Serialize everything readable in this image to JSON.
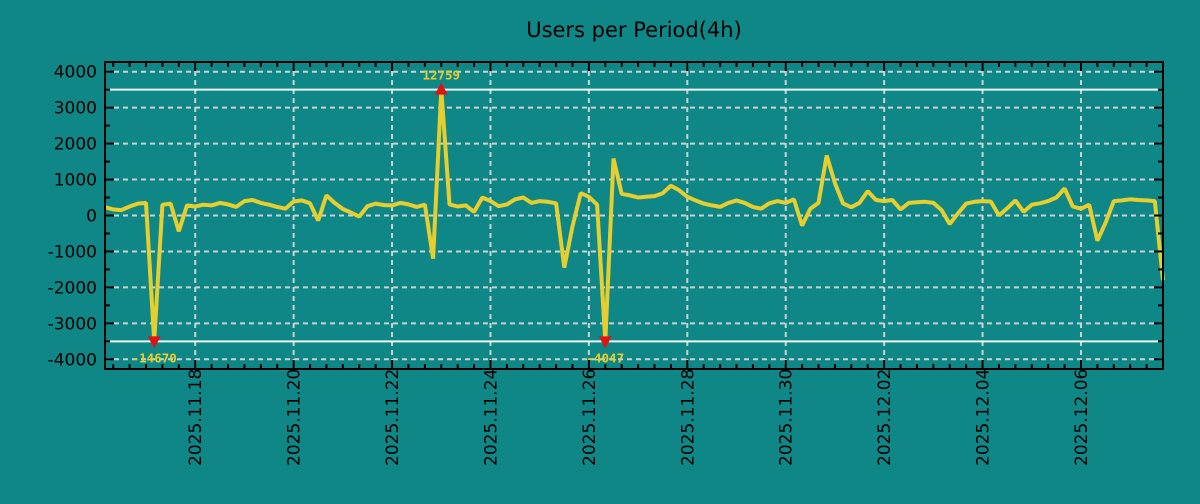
{
  "title": "Users per Period(4h)",
  "colors": {
    "background": "#0f8787",
    "line": "#e5ce2d",
    "marker_red": "#e01212",
    "grid_dashed": "#c9d4d2",
    "threshold_line": "#eef6f6",
    "axis": "#000000",
    "text": "#000000",
    "extreme_label": "#e5ce2d"
  },
  "chart_data": {
    "type": "line",
    "title": "Users per Period(4h)",
    "x_start": "2025.11.16 04:00",
    "x_step_hours": 4,
    "x_tick_labels": [
      "2025.11.18",
      "2025.11.20",
      "2025.11.22",
      "2025.11.24",
      "2025.11.26",
      "2025.11.28",
      "2025.11.30",
      "2025.12.02",
      "2025.12.04",
      "2025.12.06"
    ],
    "x_major_tick_indices": [
      11,
      23,
      35,
      47,
      59,
      71,
      83,
      95,
      107,
      119
    ],
    "x_minor_tick_every": 2,
    "ylim": [
      -4270,
      4270
    ],
    "y_major_ticks": [
      -4000,
      -3000,
      -2000,
      -1000,
      0,
      1000,
      2000,
      3000,
      4000
    ],
    "y_minor_step": 500,
    "clip_thresholds": [
      3500,
      -3500
    ],
    "grid": true,
    "legend": false,
    "values": [
      230,
      170,
      150,
      250,
      330,
      350,
      -14670,
      300,
      330,
      -440,
      280,
      250,
      300,
      280,
      350,
      310,
      240,
      400,
      430,
      350,
      300,
      240,
      190,
      390,
      420,
      340,
      -140,
      560,
      350,
      180,
      80,
      -30,
      260,
      330,
      290,
      280,
      350,
      310,
      240,
      300,
      -1200,
      12759,
      310,
      250,
      280,
      100,
      500,
      400,
      260,
      310,
      450,
      500,
      350,
      400,
      380,
      340,
      -1450,
      -300,
      620,
      520,
      300,
      -4047,
      1583,
      600,
      560,
      500,
      520,
      540,
      620,
      830,
      700,
      520,
      420,
      330,
      280,
      240,
      350,
      420,
      350,
      240,
      190,
      340,
      400,
      350,
      450,
      -280,
      190,
      350,
      1670,
      900,
      330,
      230,
      350,
      680,
      430,
      400,
      430,
      170,
      350,
      370,
      380,
      350,
      150,
      -240,
      60,
      330,
      380,
      400,
      390,
      0,
      200,
      420,
      100,
      300,
      340,
      400,
      500,
      750,
      250,
      190,
      300,
      -700,
      -200,
      400,
      420,
      450,
      430,
      420,
      400,
      -1800
    ],
    "extremes": [
      {
        "index": 6,
        "value": -14670,
        "label": "-14670",
        "direction": "down"
      },
      {
        "index": 41,
        "value": 12759,
        "label": "12759",
        "direction": "up"
      },
      {
        "index": 61,
        "value": -4047,
        "label": "-4047",
        "direction": "down"
      }
    ]
  }
}
